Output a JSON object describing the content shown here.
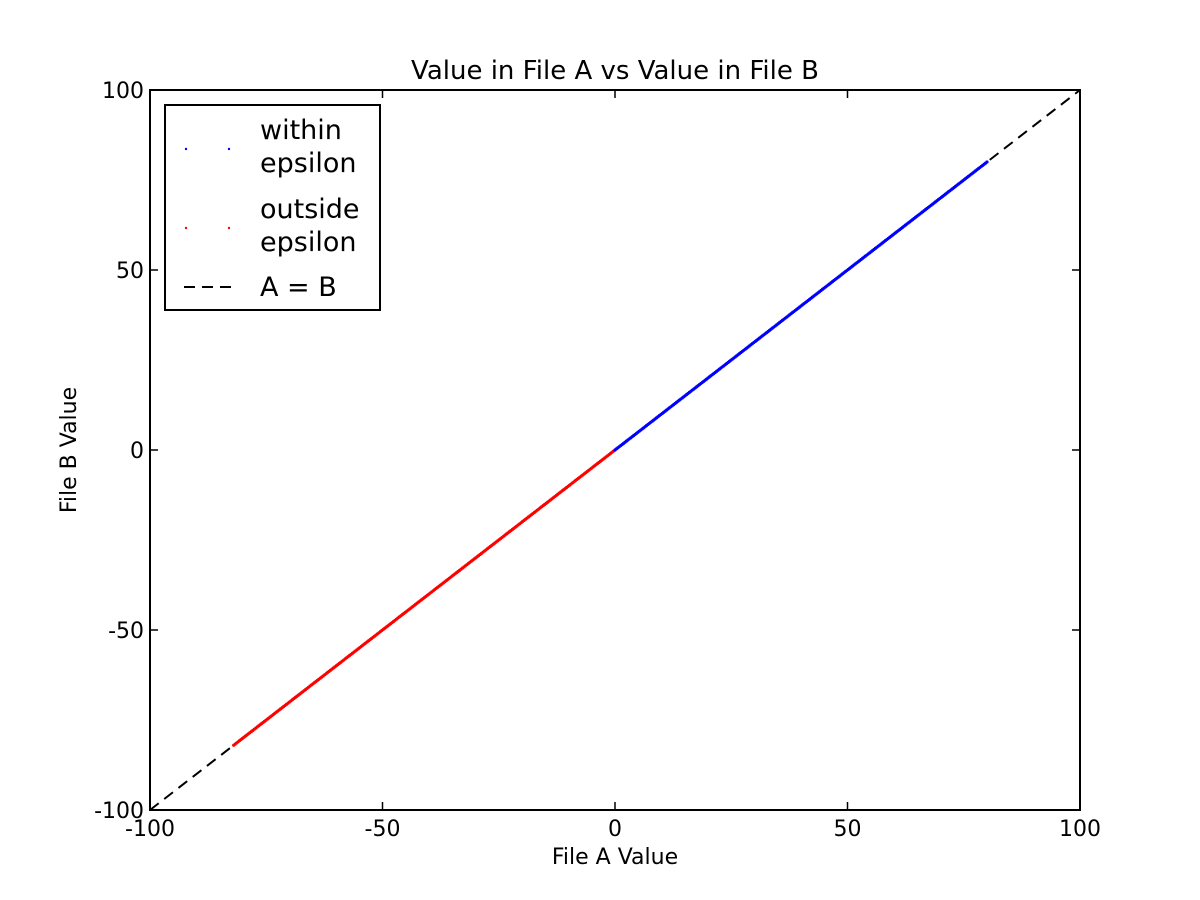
{
  "chart_data": {
    "type": "scatter",
    "title": "Value in File A vs Value in File B",
    "xlabel": "File A Value",
    "ylabel": "File B Value",
    "xlim": [
      -100,
      100
    ],
    "ylim": [
      -100,
      100
    ],
    "xticks": [
      -100,
      -50,
      0,
      50,
      100
    ],
    "yticks": [
      -100,
      -50,
      0,
      50,
      100
    ],
    "grid": false,
    "legend_position": "top-left",
    "series": [
      {
        "name": "within\nepsilon",
        "color": "#0000ff",
        "marker": "point",
        "x_range": [
          0,
          80
        ],
        "y_range": [
          0,
          80
        ]
      },
      {
        "name": "outside\nepsilon",
        "color": "#ff0000",
        "marker": "point",
        "x_range": [
          -82,
          0
        ],
        "y_range": [
          -82,
          0
        ]
      },
      {
        "name": "A = B",
        "color": "#000000",
        "style": "dashed-line",
        "x": [
          -100,
          100
        ],
        "y": [
          -100,
          100
        ]
      }
    ]
  }
}
